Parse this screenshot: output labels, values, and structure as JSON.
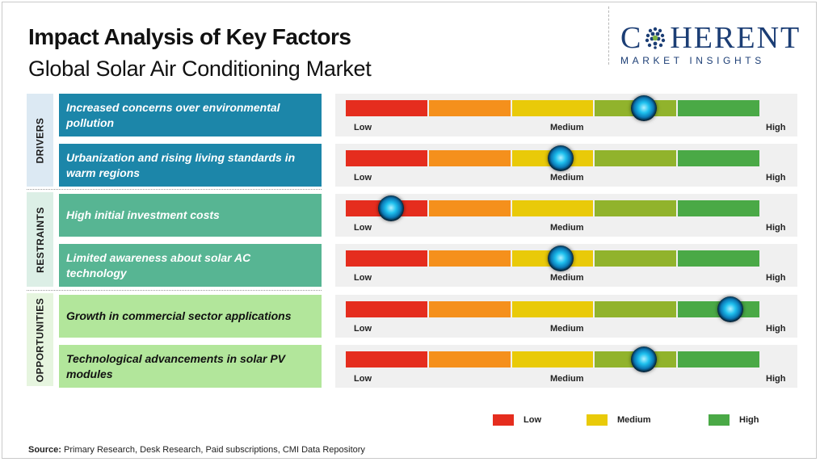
{
  "title": "Impact Analysis of Key Factors",
  "subtitle": "Global Solar Air Conditioning Market",
  "logo": {
    "brand": "COHERENT",
    "brand_rest": "HERENT",
    "brand_first": "C",
    "tagline": "MARKET INSIGHTS"
  },
  "sections": [
    {
      "name": "DRIVERS"
    },
    {
      "name": "RESTRAINTS"
    },
    {
      "name": "OPPORTUNITIES"
    }
  ],
  "scale": {
    "low": "Low",
    "medium": "Medium",
    "high": "High"
  },
  "colors": {
    "low": "#e52d1e",
    "low_mid": "#f5901c",
    "medium": "#e9ca09",
    "mid_high": "#91b32c",
    "high": "#4aa946",
    "drivers": "#1c86a9",
    "restraints": "#57b593",
    "opportunities": "#b2e69b"
  },
  "chart_data": {
    "type": "table",
    "title": "Impact Analysis of Key Factors",
    "subtitle": "Global Solar Air Conditioning Market",
    "scale_labels": [
      "Low",
      "Medium",
      "High"
    ],
    "factors": [
      {
        "category": "DRIVERS",
        "label": "Increased concerns over environmental pollution",
        "impact": 0.72
      },
      {
        "category": "DRIVERS",
        "label": "Urbanization and rising living standards in warm regions",
        "impact": 0.52
      },
      {
        "category": "RESTRAINTS",
        "label": "High initial investment costs",
        "impact": 0.11
      },
      {
        "category": "RESTRAINTS",
        "label": "Limited awareness about solar AC technology",
        "impact": 0.52
      },
      {
        "category": "OPPORTUNITIES",
        "label": "Growth in commercial sector applications",
        "impact": 0.93
      },
      {
        "category": "OPPORTUNITIES",
        "label": "Technological advancements in solar PV modules",
        "impact": 0.72
      }
    ],
    "legend": [
      "Low",
      "Medium",
      "High"
    ]
  },
  "source": {
    "label": "Source:",
    "text": " Primary Research, Desk Research, Paid subscriptions, CMI Data Repository"
  }
}
